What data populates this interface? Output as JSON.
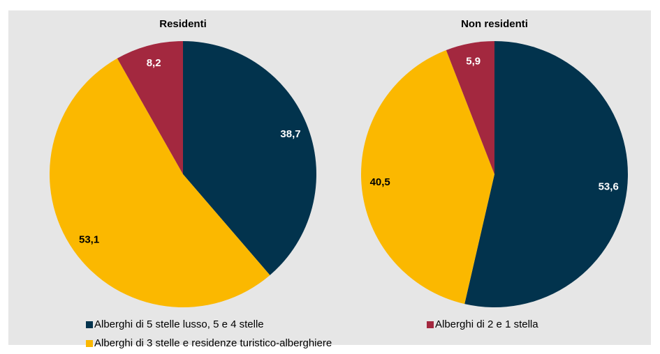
{
  "chart_data": [
    {
      "type": "pie",
      "title": "Residenti",
      "values": [
        38.7,
        53.1,
        8.2
      ],
      "value_labels": [
        "38,7",
        "53,1",
        "8,2"
      ]
    },
    {
      "type": "pie",
      "title": "Non residenti",
      "values": [
        53.6,
        40.5,
        5.9
      ],
      "value_labels": [
        "53,6",
        "40,5",
        "5,9"
      ]
    }
  ],
  "legend": {
    "categories": [
      "Alberghi di 5 stelle lusso, 5 e 4 stelle",
      "Alberghi di 3 stelle e residenze turistico-alberghiere",
      "Alberghi di 2 e 1 stella"
    ],
    "colors": [
      "#02334d",
      "#fbb800",
      "#a3283f"
    ],
    "label_colors": [
      "#ffffff",
      "#000000",
      "#ffffff"
    ]
  }
}
